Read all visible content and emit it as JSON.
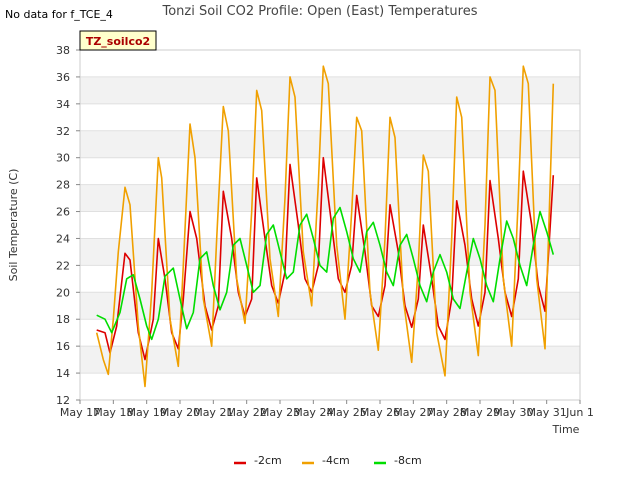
{
  "no_data_note": "No data for f_TCE_4",
  "site_tag": "TZ_soilco2",
  "chart_data": {
    "type": "line",
    "title": "Tonzi Soil CO2 Profile: Open (East) Temperatures",
    "xlabel": "Time",
    "ylabel": "Soil Temperature (C)",
    "xlim": [
      17,
      32
    ],
    "ylim": [
      12,
      38
    ],
    "x_ticks": [
      17,
      18,
      19,
      20,
      21,
      22,
      23,
      24,
      25,
      26,
      27,
      28,
      29,
      30,
      31,
      32
    ],
    "x_tick_labels": [
      "May 17",
      "May 18",
      "May 19",
      "May 20",
      "May 21",
      "May 22",
      "May 23",
      "May 24",
      "May 25",
      "May 26",
      "May 27",
      "May 28",
      "May 29",
      "May 30",
      "May 31",
      "Jun 1"
    ],
    "y_ticks": [
      12,
      14,
      16,
      18,
      20,
      22,
      24,
      26,
      28,
      30,
      32,
      34,
      36,
      38
    ],
    "y_tick_labels": [
      "12",
      "14",
      "16",
      "18",
      "20",
      "22",
      "24",
      "26",
      "28",
      "30",
      "32",
      "34",
      "36",
      "38"
    ],
    "grid": true,
    "legend_position": "bottom-center",
    "series": [
      {
        "name": "-2cm",
        "color": "#dd0000",
        "x": [
          17.5,
          17.75,
          17.9,
          18.1,
          18.35,
          18.5,
          18.75,
          18.95,
          19.2,
          19.35,
          19.55,
          19.75,
          19.95,
          20.1,
          20.3,
          20.5,
          20.75,
          20.95,
          21.15,
          21.3,
          21.55,
          21.75,
          21.95,
          22.15,
          22.3,
          22.55,
          22.75,
          22.95,
          23.15,
          23.3,
          23.55,
          23.75,
          23.95,
          24.15,
          24.3,
          24.55,
          24.75,
          24.95,
          25.15,
          25.3,
          25.55,
          25.75,
          25.95,
          26.15,
          26.3,
          26.55,
          26.75,
          26.95,
          27.15,
          27.3,
          27.55,
          27.75,
          27.95,
          28.15,
          28.3,
          28.55,
          28.75,
          28.95,
          29.15,
          29.3,
          29.55,
          29.75,
          29.95,
          30.15,
          30.3,
          30.55,
          30.75,
          30.95,
          31.2
        ],
        "y": [
          17.2,
          17.0,
          15.5,
          17.5,
          22.9,
          22.4,
          17.0,
          15.0,
          18.0,
          24.0,
          21.0,
          17.0,
          15.8,
          19.5,
          26.0,
          24.0,
          19.0,
          17.2,
          19.0,
          27.5,
          24.0,
          20.0,
          18.2,
          19.5,
          28.5,
          24.0,
          20.5,
          19.2,
          21.5,
          29.5,
          25.0,
          21.0,
          20.0,
          22.0,
          30.0,
          25.0,
          21.0,
          20.0,
          22.0,
          27.2,
          23.0,
          19.0,
          18.2,
          20.5,
          26.5,
          23.0,
          19.0,
          17.4,
          19.5,
          25.0,
          21.0,
          17.5,
          16.5,
          19.5,
          26.8,
          23.5,
          19.5,
          17.5,
          20.0,
          28.3,
          24.0,
          20.0,
          18.2,
          21.0,
          29.0,
          25.0,
          20.5,
          18.6,
          28.7
        ]
      },
      {
        "name": "-4cm",
        "color": "#f0a000",
        "x": [
          17.5,
          17.7,
          17.85,
          18.0,
          18.15,
          18.35,
          18.5,
          18.75,
          18.95,
          19.15,
          19.35,
          19.45,
          19.7,
          19.95,
          20.1,
          20.3,
          20.45,
          20.7,
          20.95,
          21.1,
          21.3,
          21.45,
          21.7,
          21.95,
          22.15,
          22.3,
          22.45,
          22.7,
          22.95,
          23.15,
          23.3,
          23.45,
          23.7,
          23.95,
          24.15,
          24.3,
          24.45,
          24.7,
          24.95,
          25.15,
          25.3,
          25.45,
          25.7,
          25.95,
          26.15,
          26.3,
          26.45,
          26.7,
          26.95,
          27.15,
          27.3,
          27.45,
          27.7,
          27.95,
          28.15,
          28.3,
          28.45,
          28.7,
          28.95,
          29.15,
          29.3,
          29.45,
          29.7,
          29.95,
          30.15,
          30.3,
          30.45,
          30.7,
          30.95,
          31.2
        ],
        "y": [
          17.0,
          15.0,
          13.9,
          18.0,
          23.0,
          27.8,
          26.5,
          17.5,
          13.0,
          20.0,
          30.0,
          28.5,
          18.0,
          14.5,
          22.0,
          32.5,
          30.0,
          19.5,
          16.0,
          24.0,
          33.8,
          32.0,
          21.0,
          17.7,
          26.0,
          35.0,
          33.5,
          22.5,
          18.2,
          27.0,
          36.0,
          34.5,
          23.0,
          19.0,
          28.0,
          36.8,
          35.5,
          23.5,
          18.0,
          26.0,
          33.0,
          32.0,
          20.0,
          15.7,
          24.0,
          33.0,
          31.5,
          19.5,
          14.8,
          22.0,
          30.2,
          29.0,
          17.0,
          13.8,
          24.0,
          34.5,
          33.0,
          20.0,
          15.3,
          25.0,
          36.0,
          35.0,
          21.0,
          16.0,
          27.0,
          36.8,
          35.5,
          21.0,
          15.8,
          35.5
        ]
      },
      {
        "name": "-8cm",
        "color": "#00dd00",
        "x": [
          17.5,
          17.75,
          17.95,
          18.2,
          18.4,
          18.6,
          18.8,
          19.0,
          19.15,
          19.35,
          19.55,
          19.8,
          20.0,
          20.2,
          20.4,
          20.6,
          20.8,
          21.0,
          21.2,
          21.4,
          21.6,
          21.8,
          22.0,
          22.2,
          22.4,
          22.6,
          22.8,
          23.0,
          23.2,
          23.4,
          23.6,
          23.8,
          24.0,
          24.2,
          24.4,
          24.6,
          24.8,
          25.0,
          25.2,
          25.4,
          25.6,
          25.8,
          26.0,
          26.2,
          26.4,
          26.6,
          26.8,
          27.0,
          27.2,
          27.4,
          27.6,
          27.8,
          28.0,
          28.2,
          28.4,
          28.6,
          28.8,
          29.0,
          29.2,
          29.4,
          29.6,
          29.8,
          30.0,
          30.2,
          30.4,
          30.6,
          30.8,
          31.0,
          31.2
        ],
        "y": [
          18.3,
          18.0,
          17.0,
          18.5,
          21.0,
          21.3,
          19.5,
          17.5,
          16.5,
          18.0,
          21.2,
          21.8,
          19.5,
          17.3,
          18.5,
          22.5,
          23.0,
          20.5,
          18.7,
          20.0,
          23.5,
          24.0,
          22.0,
          20.0,
          20.5,
          24.3,
          25.0,
          23.0,
          21.0,
          21.5,
          25.0,
          25.8,
          24.0,
          22.0,
          21.5,
          25.5,
          26.3,
          24.5,
          22.5,
          21.5,
          24.5,
          25.2,
          23.5,
          21.5,
          20.5,
          23.5,
          24.3,
          22.5,
          20.5,
          19.3,
          21.5,
          22.8,
          21.5,
          19.5,
          18.8,
          21.5,
          24.0,
          22.5,
          20.5,
          19.3,
          22.5,
          25.3,
          24.0,
          22.0,
          20.5,
          23.5,
          26.0,
          24.5,
          22.8
        ]
      }
    ]
  }
}
